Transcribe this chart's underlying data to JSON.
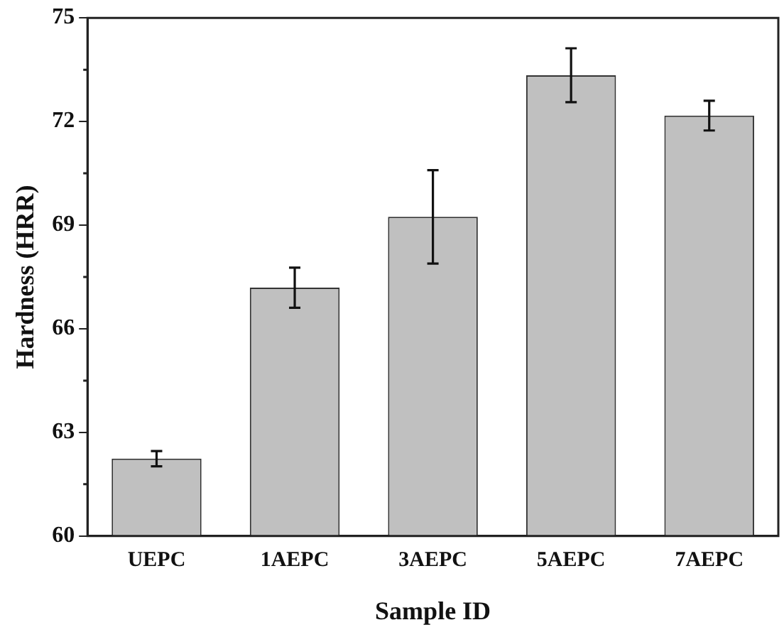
{
  "chart_data": {
    "type": "bar",
    "xlabel": "Sample ID",
    "ylabel": "Hardness (HRR)",
    "categories": [
      "UEPC",
      "1AEPC",
      "3AEPC",
      "5AEPC",
      "7AEPC"
    ],
    "values": [
      62.24,
      67.19,
      69.24,
      73.34,
      72.17
    ],
    "errors": [
      0.22,
      0.58,
      1.35,
      0.78,
      0.43
    ],
    "color": "#c0c0c0",
    "ylim": [
      60,
      75
    ],
    "yticks": [
      60,
      63,
      66,
      69,
      72,
      75
    ],
    "grid": false,
    "legend": false
  }
}
